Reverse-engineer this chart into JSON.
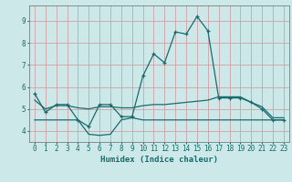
{
  "xlabel": "Humidex (Indice chaleur)",
  "bg_color": "#cce8e8",
  "grid_color": "#d4a0a8",
  "line_color": "#1a6b6b",
  "xlim": [
    -0.5,
    23.5
  ],
  "ylim": [
    3.5,
    9.7
  ],
  "yticks": [
    4,
    5,
    6,
    7,
    8,
    9
  ],
  "xticks": [
    0,
    1,
    2,
    3,
    4,
    5,
    6,
    7,
    8,
    9,
    10,
    11,
    12,
    13,
    14,
    15,
    16,
    17,
    18,
    19,
    20,
    21,
    22,
    23
  ],
  "line1_x": [
    0,
    1,
    2,
    3,
    4,
    5,
    6,
    7,
    8,
    9,
    10,
    11,
    12,
    13,
    14,
    15,
    16,
    17,
    18,
    19,
    20,
    21,
    22,
    23
  ],
  "line1_y": [
    5.7,
    4.85,
    5.2,
    5.2,
    4.5,
    4.2,
    5.2,
    5.2,
    4.65,
    4.65,
    6.5,
    7.5,
    7.1,
    8.5,
    8.4,
    9.2,
    8.55,
    5.5,
    5.5,
    5.5,
    5.3,
    5.0,
    4.5,
    4.5
  ],
  "line2_x": [
    0,
    1,
    2,
    3,
    4,
    5,
    6,
    7,
    8,
    9,
    10,
    11,
    12,
    13,
    14,
    15,
    16,
    17,
    18,
    19,
    20,
    21,
    22,
    23
  ],
  "line2_y": [
    5.4,
    5.0,
    5.15,
    5.15,
    5.05,
    5.0,
    5.1,
    5.1,
    5.05,
    5.05,
    5.15,
    5.2,
    5.2,
    5.25,
    5.3,
    5.35,
    5.4,
    5.55,
    5.55,
    5.55,
    5.3,
    5.1,
    4.6,
    4.6
  ],
  "line3_x": [
    0,
    1,
    2,
    3,
    4,
    5,
    6,
    7,
    8,
    9,
    10,
    11,
    12,
    13,
    14,
    15,
    16,
    17,
    18,
    19,
    20,
    21,
    22,
    23
  ],
  "line3_y": [
    4.5,
    4.5,
    4.5,
    4.5,
    4.5,
    3.85,
    3.8,
    3.85,
    4.5,
    4.6,
    4.5,
    4.5,
    4.5,
    4.5,
    4.5,
    4.5,
    4.5,
    4.5,
    4.5,
    4.5,
    4.5,
    4.5,
    4.5,
    4.5
  ]
}
